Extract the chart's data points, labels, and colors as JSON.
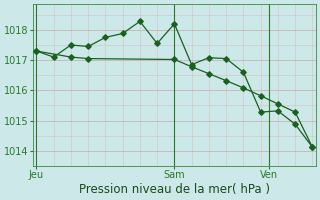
{
  "background_color": "#cce8e8",
  "line_color": "#1a6020",
  "xlabel": "Pression niveau de la mer( hPa )",
  "xlabel_fontsize": 8.5,
  "tick_color": "#2a7a2a",
  "tick_fontsize": 7,
  "ylim": [
    1013.5,
    1018.85
  ],
  "yticks": [
    1014,
    1015,
    1016,
    1017,
    1018
  ],
  "xlim": [
    -0.2,
    16.2
  ],
  "day_positions": [
    0.0,
    8.0,
    13.5
  ],
  "day_labels": [
    "Jeu",
    "Sam",
    "Ven"
  ],
  "vline_positions": [
    0.0,
    8.0,
    13.5
  ],
  "s1_x": [
    0,
    1,
    2,
    3,
    4,
    5,
    6,
    7,
    8,
    9,
    10,
    11,
    12,
    13,
    14,
    15,
    16
  ],
  "s1_y": [
    1017.3,
    1017.1,
    1017.5,
    1017.45,
    1017.75,
    1017.88,
    1018.28,
    1017.55,
    1018.2,
    1016.85,
    1017.08,
    1017.05,
    1016.6,
    1015.28,
    1015.32,
    1014.88,
    1014.12
  ],
  "s2_x": [
    0,
    2,
    3,
    8,
    9,
    10,
    11,
    12,
    13,
    14,
    15,
    16
  ],
  "s2_y": [
    1017.3,
    1017.1,
    1017.05,
    1017.02,
    1016.78,
    1016.55,
    1016.32,
    1016.08,
    1015.82,
    1015.55,
    1015.28,
    1014.12
  ]
}
